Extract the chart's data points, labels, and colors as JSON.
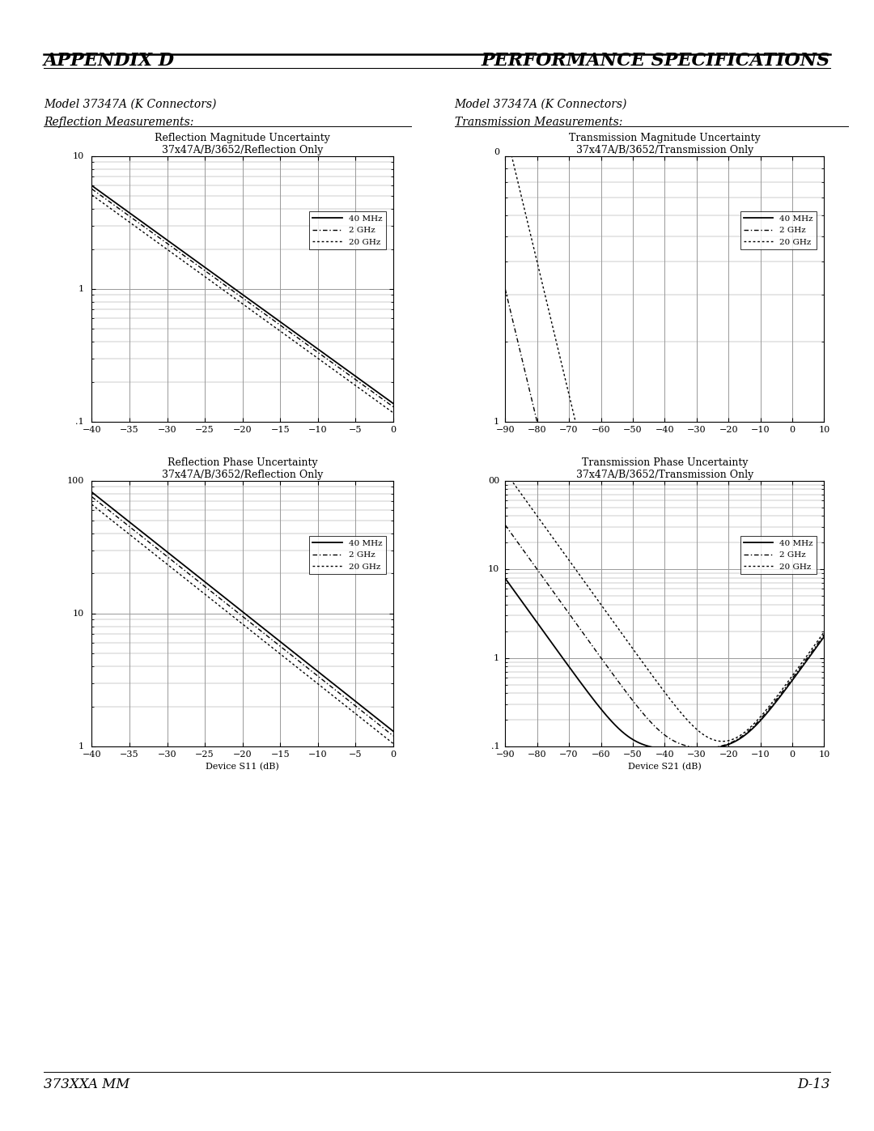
{
  "header_left": "APPENDIX D",
  "header_right": "PERFORMANCE SPECIFICATIONS",
  "footer_left": "373XXA MM",
  "footer_right": "D-13",
  "left_section_title1": "Model 37347A (K Connectors)",
  "left_section_title2": "Reflection Measurements:",
  "right_section_title1": "Model 37347A (K Connectors)",
  "right_section_title2": "Transmission Measurements:",
  "plot1": {
    "title": "Reflection Magnitude Uncertainty",
    "subtitle": "37x47A/B/3652/Reflection Only",
    "xlabel": "",
    "xmin": -40,
    "xmax": 0,
    "xticks": [
      -40,
      -35,
      -30,
      -25,
      -20,
      -15,
      -10,
      -5,
      0
    ],
    "ymin": 0.1,
    "ymax": 10,
    "ytick_positions": [
      0.1,
      1,
      10
    ],
    "ytick_labels": [
      ".1",
      "1",
      "10"
    ]
  },
  "plot2": {
    "title": "Reflection Phase Uncertainty",
    "subtitle": "37x47A/B/3652/Reflection Only",
    "xlabel": "Device S11 (dB)",
    "xmin": -40,
    "xmax": 0,
    "xticks": [
      -40,
      -35,
      -30,
      -25,
      -20,
      -15,
      -10,
      -5,
      0
    ],
    "ymin": 1,
    "ymax": 100,
    "ytick_positions": [
      1,
      10,
      100
    ],
    "ytick_labels": [
      "1",
      "10",
      "100"
    ]
  },
  "plot3": {
    "title": "Transmission Magnitude Uncertainty",
    "subtitle": "37x47A/B/3652/Transmission Only",
    "xlabel": "",
    "xmin": -90,
    "xmax": 10,
    "xticks": [
      -90,
      -80,
      -70,
      -60,
      -50,
      -40,
      -30,
      -20,
      -10,
      0,
      10
    ],
    "ymin": 1.0,
    "ymax": 10.0,
    "ytick_positions": [
      1.0,
      10.0
    ],
    "ytick_labels_left": [
      "1",
      ""
    ],
    "top_label": "0"
  },
  "plot4": {
    "title": "Transmission Phase Uncertainty",
    "subtitle": "37x47A/B/3652/Transmission Only",
    "xlabel": "Device S21 (dB)",
    "xmin": -90,
    "xmax": 10,
    "xticks": [
      -90,
      -80,
      -70,
      -60,
      -50,
      -40,
      -30,
      -20,
      -10,
      0,
      10
    ],
    "ymin": 0.1,
    "ymax": 100,
    "ytick_positions": [
      0.1,
      1,
      10,
      100
    ],
    "ytick_labels": [
      ".1",
      "1",
      "10",
      "00"
    ]
  },
  "grid_color": "#999999",
  "bg_color": "#ffffff"
}
